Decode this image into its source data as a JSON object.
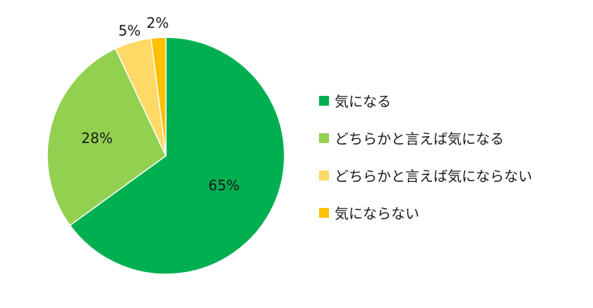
{
  "chart_data": {
    "type": "pie",
    "title": "",
    "slices": [
      {
        "label": "気になる",
        "value": 65,
        "display": "65%",
        "color": "#00b050"
      },
      {
        "label": "どちらかと言えば気になる",
        "value": 28,
        "display": "28%",
        "color": "#92d050"
      },
      {
        "label": "どちらかと言えば気にならない",
        "value": 5,
        "display": "5%",
        "color": "#ffd966"
      },
      {
        "label": "気にならない",
        "value": 2,
        "display": "2%",
        "color": "#ffc000"
      }
    ],
    "legend_position": "right",
    "start_angle": "12 o'clock",
    "direction": "clockwise"
  }
}
